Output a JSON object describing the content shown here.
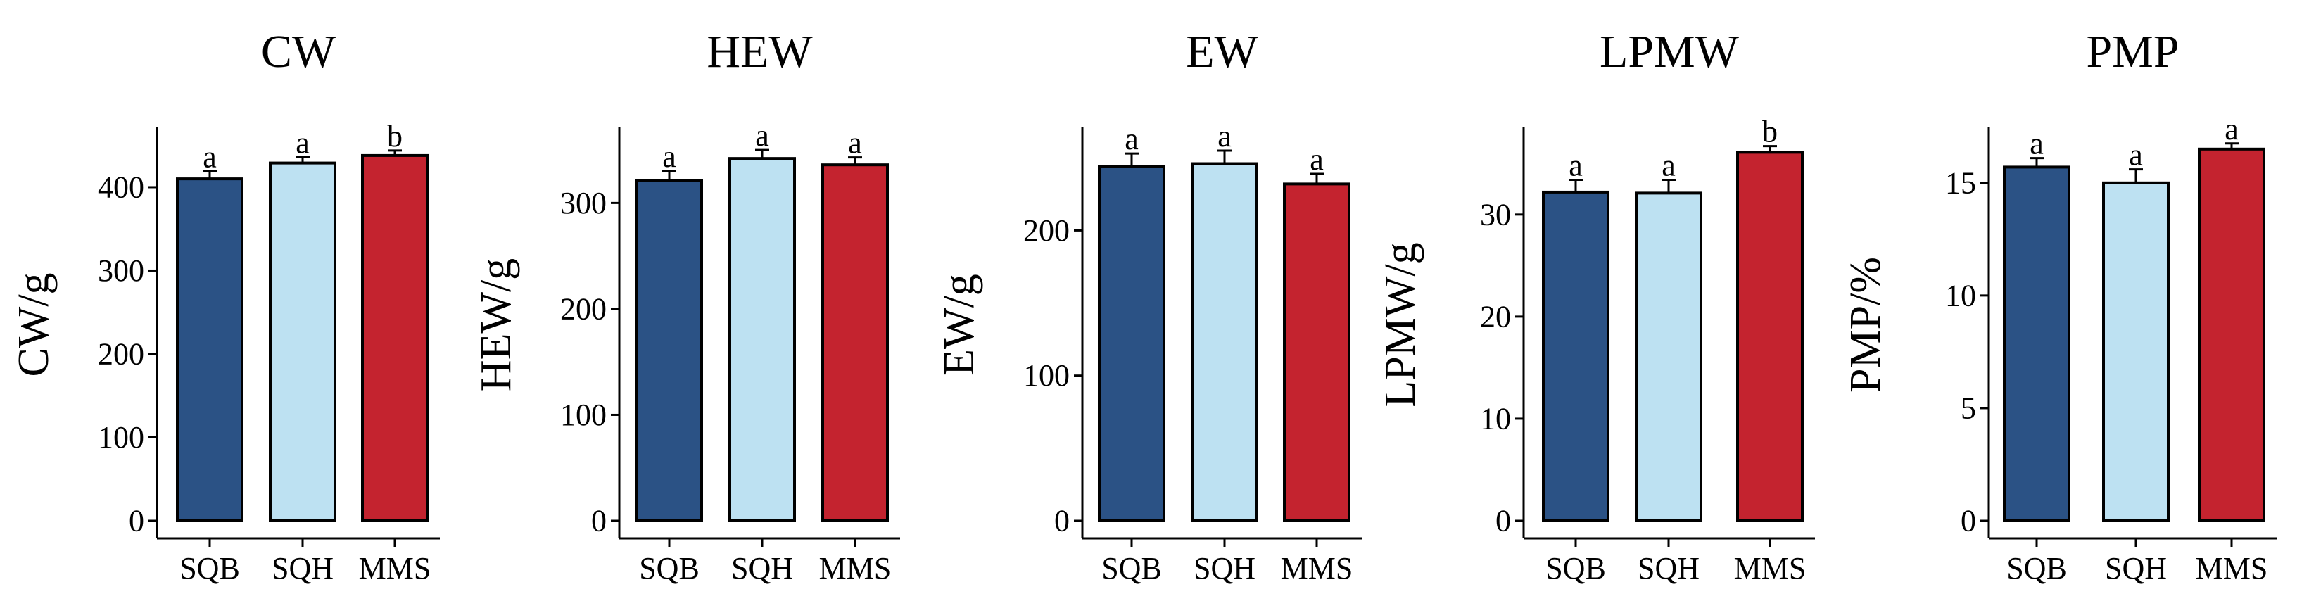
{
  "chart_data": [
    {
      "type": "bar",
      "title": "CW",
      "ylabel": "CW/g",
      "categories": [
        "SQB",
        "SQH",
        "MMS"
      ],
      "values": [
        410,
        429,
        438
      ],
      "errors": [
        9,
        7,
        6
      ],
      "significance": [
        "a",
        "a",
        "b"
      ],
      "ylim": [
        0,
        470
      ],
      "yticks": [
        0,
        100,
        200,
        300,
        400
      ],
      "colors": [
        "#2b5285",
        "#bde1f2",
        "#c4232f"
      ]
    },
    {
      "type": "bar",
      "title": "HEW",
      "ylabel": "HEW/g",
      "categories": [
        "SQB",
        "SQH",
        "MMS"
      ],
      "values": [
        321,
        342,
        336
      ],
      "errors": [
        9,
        8,
        7
      ],
      "significance": [
        "a",
        "a",
        "a"
      ],
      "ylim": [
        0,
        370
      ],
      "yticks": [
        0,
        100,
        200,
        300
      ],
      "colors": [
        "#2b5285",
        "#bde1f2",
        "#c4232f"
      ]
    },
    {
      "type": "bar",
      "title": "EW",
      "ylabel": "EW/g",
      "categories": [
        "SQB",
        "SQH",
        "MMS"
      ],
      "values": [
        244,
        246,
        232
      ],
      "errors": [
        9,
        9,
        7
      ],
      "significance": [
        "a",
        "a",
        "a"
      ],
      "ylim": [
        0,
        270
      ],
      "yticks": [
        0,
        100,
        200
      ],
      "colors": [
        "#2b5285",
        "#bde1f2",
        "#c4232f"
      ]
    },
    {
      "type": "bar",
      "title": "LPMW",
      "ylabel": "LPMW/g",
      "categories": [
        "SQB",
        "SQH",
        "MMS"
      ],
      "values": [
        32.2,
        32.1,
        36.1
      ],
      "errors": [
        1.2,
        1.3,
        0.6
      ],
      "significance": [
        "a",
        "a",
        "b"
      ],
      "ylim": [
        0,
        38.4
      ],
      "yticks": [
        0,
        10,
        20,
        30
      ],
      "colors": [
        "#2b5285",
        "#bde1f2",
        "#c4232f"
      ]
    },
    {
      "type": "bar",
      "title": "PMP",
      "ylabel": "PMP/%",
      "categories": [
        "SQB",
        "SQH",
        "MMS"
      ],
      "values": [
        15.7,
        15.0,
        16.5
      ],
      "errors": [
        0.4,
        0.6,
        0.25
      ],
      "significance": [
        "a",
        "a",
        "a"
      ],
      "ylim": [
        0,
        17.4
      ],
      "yticks": [
        0,
        5,
        10,
        15
      ],
      "colors": [
        "#2b5285",
        "#bde1f2",
        "#c4232f"
      ]
    }
  ]
}
